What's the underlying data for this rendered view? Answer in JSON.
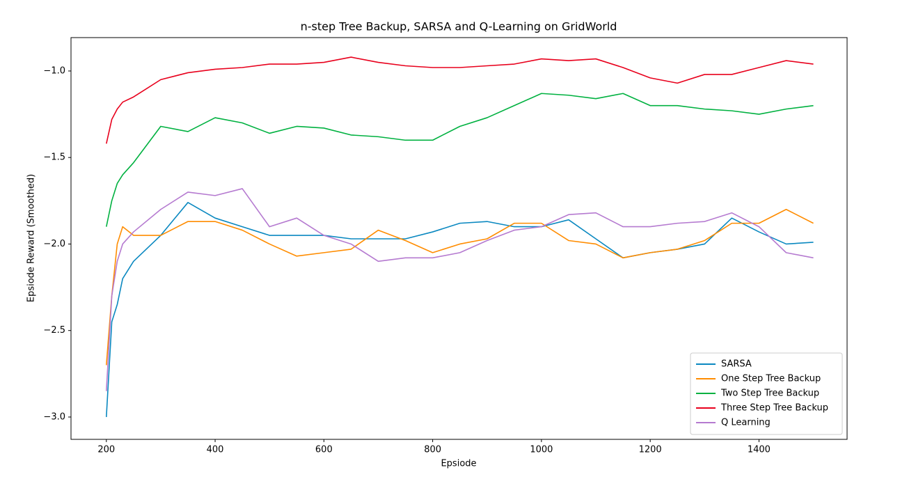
{
  "chart_data": {
    "type": "line",
    "title": "n-step Tree Backup, SARSA and Q-Learning on GridWorld",
    "x_label": "Epsiode",
    "y_label": "Epsiode Reward (Smoothed)",
    "x": [
      200,
      210,
      220,
      230,
      250,
      300,
      350,
      400,
      450,
      500,
      550,
      600,
      650,
      700,
      750,
      800,
      850,
      900,
      950,
      1000,
      1050,
      1100,
      1150,
      1200,
      1250,
      1300,
      1350,
      1400,
      1450,
      1500
    ],
    "series": [
      {
        "name": "SARSA",
        "color": "#0a88c0",
        "values": [
          -3.0,
          -2.45,
          -2.35,
          -2.2,
          -2.1,
          -1.95,
          -1.76,
          -1.85,
          -1.9,
          -1.95,
          -1.95,
          -1.95,
          -1.97,
          -1.97,
          -1.97,
          -1.93,
          -1.88,
          -1.87,
          -1.9,
          -1.9,
          -1.86,
          -1.97,
          -2.08,
          -2.05,
          -2.03,
          -2.0,
          -1.85,
          -1.93,
          -2.0,
          -1.99
        ]
      },
      {
        "name": "One Step Tree Backup",
        "color": "#ff8c00",
        "values": [
          -2.7,
          -2.3,
          -2.0,
          -1.9,
          -1.95,
          -1.95,
          -1.87,
          -1.87,
          -1.92,
          -2.0,
          -2.07,
          -2.05,
          -2.03,
          -1.92,
          -1.98,
          -2.05,
          -2.0,
          -1.97,
          -1.88,
          -1.88,
          -1.98,
          -2.0,
          -2.08,
          -2.05,
          -2.03,
          -1.98,
          -1.88,
          -1.88,
          -1.8,
          -1.88
        ]
      },
      {
        "name": "Two Step Tree Backup",
        "color": "#00b140",
        "values": [
          -1.9,
          -1.75,
          -1.65,
          -1.6,
          -1.53,
          -1.32,
          -1.35,
          -1.27,
          -1.3,
          -1.36,
          -1.32,
          -1.33,
          -1.37,
          -1.38,
          -1.4,
          -1.4,
          -1.32,
          -1.27,
          -1.2,
          -1.13,
          -1.14,
          -1.16,
          -1.13,
          -1.2,
          -1.2,
          -1.22,
          -1.23,
          -1.25,
          -1.22,
          -1.2
        ]
      },
      {
        "name": "Three Step Tree Backup",
        "color": "#e8001c",
        "values": [
          -1.42,
          -1.28,
          -1.22,
          -1.18,
          -1.15,
          -1.05,
          -1.01,
          -0.99,
          -0.98,
          -0.96,
          -0.96,
          -0.95,
          -0.92,
          -0.95,
          -0.97,
          -0.98,
          -0.98,
          -0.97,
          -0.96,
          -0.93,
          -0.94,
          -0.93,
          -0.98,
          -1.04,
          -1.07,
          -1.02,
          -1.02,
          -0.98,
          -0.94,
          -0.96
        ]
      },
      {
        "name": "Q Learning",
        "color": "#b57ad0",
        "values": [
          -2.85,
          -2.3,
          -2.1,
          -2.0,
          -1.93,
          -1.8,
          -1.7,
          -1.72,
          -1.68,
          -1.9,
          -1.85,
          -1.95,
          -2.0,
          -2.1,
          -2.08,
          -2.08,
          -2.05,
          -1.98,
          -1.92,
          -1.9,
          -1.83,
          -1.82,
          -1.9,
          -1.9,
          -1.88,
          -1.87,
          -1.82,
          -1.9,
          -2.05,
          -2.08
        ]
      }
    ],
    "xlim": [
      135,
      1562
    ],
    "ylim": [
      -3.129,
      -0.807
    ],
    "xticks": [
      200,
      400,
      600,
      800,
      1000,
      1200,
      1400
    ],
    "yticks": [
      {
        "value": -3.0,
        "label": "−3.0"
      },
      {
        "value": -2.5,
        "label": "−2.5"
      },
      {
        "value": -2.0,
        "label": "−2.0"
      },
      {
        "value": -1.5,
        "label": "−1.5"
      },
      {
        "value": -1.0,
        "label": "−1.0"
      }
    ],
    "legend": "lower right",
    "grid": false
  }
}
